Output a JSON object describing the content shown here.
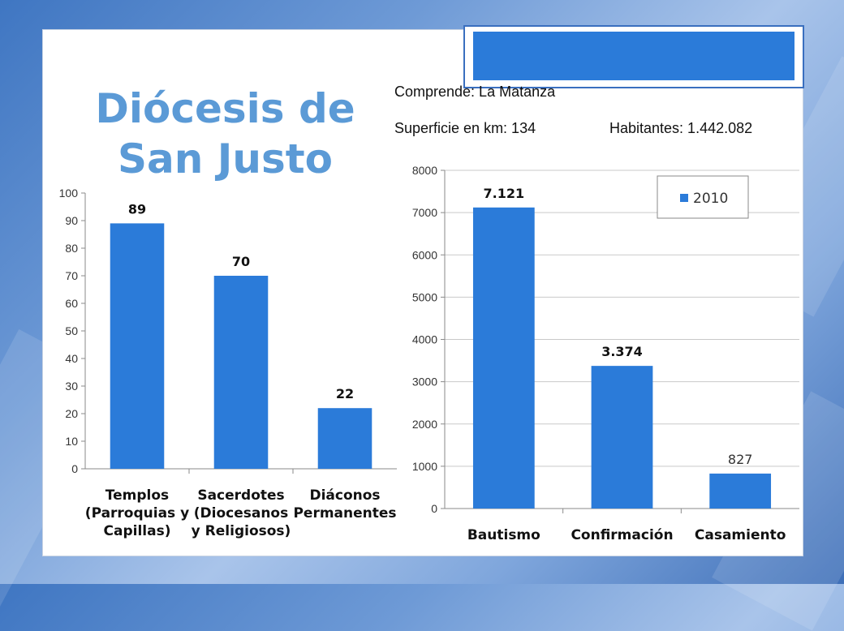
{
  "slide": {
    "title_line1": "Diócesis de",
    "title_line2": "San Justo",
    "comprende": "Comprende: La Matanza",
    "superficie": "Superficie en km: 134",
    "habitantes": "Habitantes: 1.442.082"
  },
  "colors": {
    "bar": "#2b7bd9",
    "title": "#5b9ad6",
    "gridline": "#c9c9c9"
  },
  "chart_data": [
    {
      "type": "bar",
      "title": "",
      "xlabel": "",
      "ylabel": "",
      "categories": [
        [
          "Templos",
          "(Parroquias y",
          "Capillas)"
        ],
        [
          "Sacerdotes",
          "(Diocesanos",
          "y Religiosos)"
        ],
        [
          "Diáconos",
          "Permanentes"
        ]
      ],
      "values": [
        89,
        70,
        22
      ],
      "data_labels": [
        "89",
        "70",
        "22"
      ],
      "label_bold": [
        true,
        true,
        true
      ],
      "ylim": [
        0,
        100
      ],
      "yticks": [
        0,
        10,
        20,
        30,
        40,
        50,
        60,
        70,
        80,
        90,
        100
      ],
      "ytick_labels": [
        "0",
        "10",
        "20",
        "30",
        "40",
        "50",
        "60",
        "70",
        "80",
        "90",
        "100"
      ],
      "grid": false
    },
    {
      "type": "bar",
      "title": "",
      "xlabel": "",
      "ylabel": "",
      "categories": [
        [
          "Bautismo"
        ],
        [
          "Confirmación"
        ],
        [
          "Casamiento"
        ]
      ],
      "series": [
        {
          "name": "2010",
          "values": [
            7121,
            3374,
            827
          ]
        }
      ],
      "data_labels": [
        "7.121",
        "3.374",
        "827"
      ],
      "label_bold": [
        true,
        true,
        false
      ],
      "ylim": [
        0,
        8000
      ],
      "yticks": [
        0,
        1000,
        2000,
        3000,
        4000,
        5000,
        6000,
        7000,
        8000
      ],
      "ytick_labels": [
        "0",
        "1000",
        "2000",
        "3000",
        "4000",
        "5000",
        "6000",
        "7000",
        "8000"
      ],
      "grid": true,
      "legend": "top-right"
    }
  ]
}
